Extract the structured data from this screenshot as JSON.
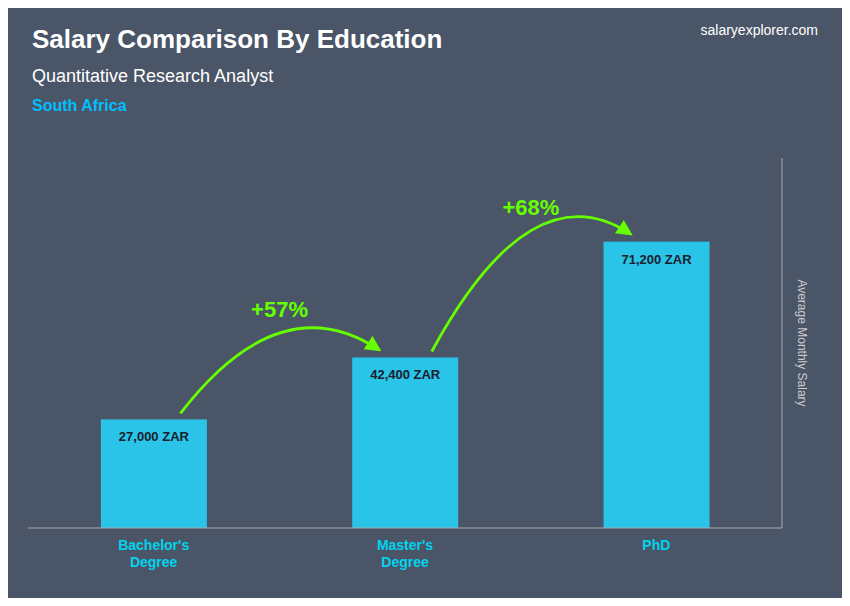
{
  "chart_data": {
    "type": "bar",
    "title": "Salary Comparison By Education",
    "subtitle": "Quantitative Research Analyst",
    "country": "South Africa",
    "watermark": "salaryexplorer.com",
    "ylabel": "Average Monthly Salary",
    "categories": [
      "Bachelor's\nDegree",
      "Master's\nDegree",
      "PhD"
    ],
    "values": [
      27000,
      42400,
      71200
    ],
    "value_labels": [
      "27,000 ZAR",
      "42,400 ZAR",
      "71,200 ZAR"
    ],
    "color": "#29C4E8",
    "annotations": [
      {
        "text": "+57%",
        "color": "#66ff00"
      },
      {
        "text": "+68%",
        "color": "#66ff00"
      }
    ],
    "ylim": [
      0,
      92000
    ],
    "yticks": [],
    "tick_labels": "x",
    "data_labels": true,
    "grid": false
  }
}
